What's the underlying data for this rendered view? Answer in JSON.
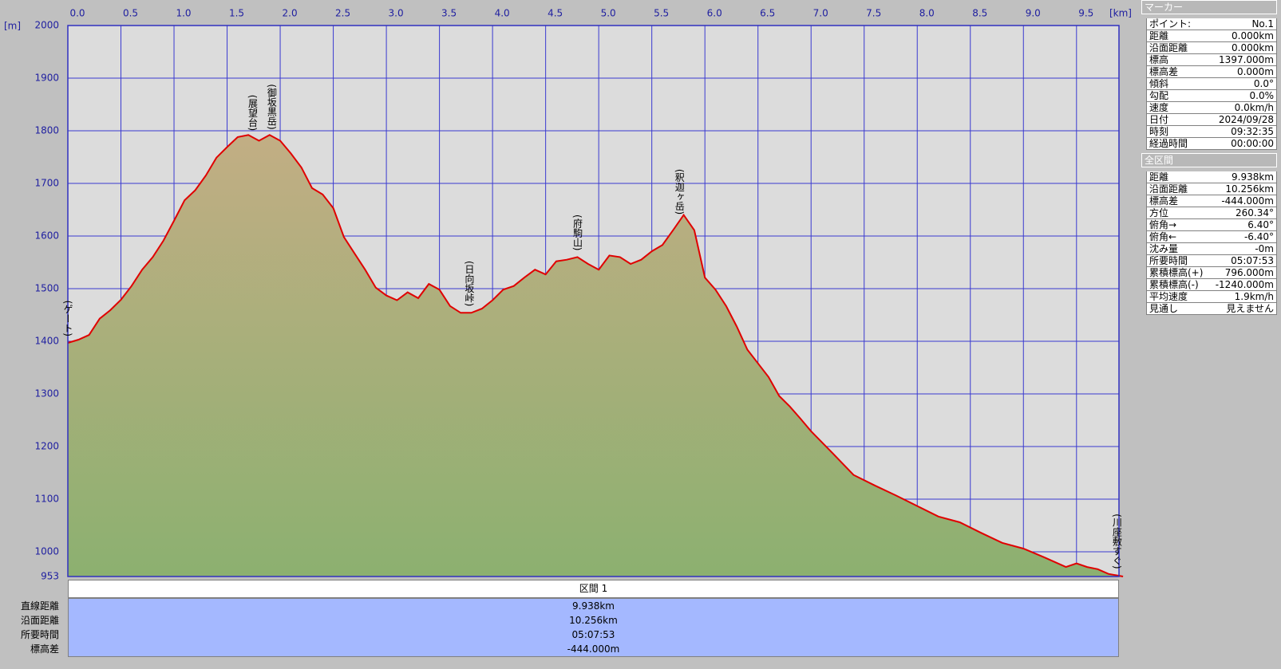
{
  "chart_data": {
    "type": "area",
    "x_unit": "[km]",
    "y_unit": "[m]",
    "x": [
      0,
      0.1,
      0.2,
      0.3,
      0.4,
      0.5,
      0.6,
      0.7,
      0.8,
      0.9,
      1.0,
      1.1,
      1.2,
      1.3,
      1.4,
      1.5,
      1.6,
      1.7,
      1.8,
      1.9,
      2.0,
      2.1,
      2.2,
      2.3,
      2.4,
      2.5,
      2.6,
      2.7,
      2.8,
      2.9,
      3.0,
      3.1,
      3.2,
      3.3,
      3.4,
      3.5,
      3.6,
      3.7,
      3.8,
      3.9,
      4.0,
      4.1,
      4.2,
      4.3,
      4.4,
      4.5,
      4.6,
      4.7,
      4.8,
      4.9,
      5.0,
      5.1,
      5.2,
      5.3,
      5.4,
      5.5,
      5.6,
      5.7,
      5.8,
      5.9,
      6.0,
      6.1,
      6.2,
      6.3,
      6.4,
      6.5,
      6.6,
      6.7,
      6.8,
      6.9,
      7.0,
      7.2,
      7.4,
      7.6,
      7.8,
      8.0,
      8.2,
      8.4,
      8.6,
      8.8,
      9.0,
      9.2,
      9.4,
      9.5,
      9.6,
      9.7,
      9.8,
      9.938
    ],
    "values": [
      1397,
      1403,
      1412,
      1443,
      1459,
      1479,
      1505,
      1536,
      1560,
      1591,
      1629,
      1668,
      1687,
      1715,
      1749,
      1769,
      1788,
      1792,
      1781,
      1792,
      1781,
      1757,
      1730,
      1691,
      1679,
      1653,
      1598,
      1567,
      1536,
      1502,
      1487,
      1478,
      1493,
      1482,
      1509,
      1498,
      1467,
      1454,
      1454,
      1462,
      1478,
      1498,
      1505,
      1521,
      1536,
      1527,
      1552,
      1555,
      1560,
      1547,
      1536,
      1563,
      1560,
      1547,
      1555,
      1571,
      1583,
      1611,
      1640,
      1611,
      1521,
      1498,
      1467,
      1428,
      1384,
      1358,
      1332,
      1296,
      1276,
      1253,
      1229,
      1188,
      1146,
      1126,
      1107,
      1087,
      1067,
      1056,
      1036,
      1017,
      1006,
      989,
      971,
      978,
      971,
      967,
      958,
      953
    ],
    "color": "#e00000",
    "xlim": [
      0,
      9.9
    ],
    "ylim": [
      953,
      2000
    ],
    "xticks": [
      {
        "value": 0,
        "label": "0.0"
      },
      0.5,
      {
        "value": 1,
        "label": "1.0"
      },
      1.5,
      {
        "value": 2,
        "label": "2.0"
      },
      2.5,
      {
        "value": 3,
        "label": "3.0"
      },
      3.5,
      {
        "value": 4,
        "label": "4.0"
      },
      4.5,
      {
        "value": 5,
        "label": "5.0"
      },
      5.5,
      {
        "value": 6,
        "label": "6.0"
      },
      6.5,
      {
        "value": 7,
        "label": "7.0"
      },
      7.5,
      {
        "value": 8,
        "label": "8.0"
      },
      8.5,
      {
        "value": 9,
        "label": "9.0"
      },
      9.5
    ],
    "yticks": [
      953,
      1000,
      1100,
      1200,
      1300,
      1400,
      1500,
      1600,
      1700,
      1800,
      1900,
      2000
    ],
    "grid": true,
    "annotations": [
      {
        "text": "(ゲート)",
        "x": 0
      },
      {
        "text": "(展望台)",
        "x": 1.74
      },
      {
        "text": "(御坂黒岳)",
        "x": 1.92
      },
      {
        "text": "(日向坂峠)",
        "x": 3.78
      },
      {
        "text": "(府駒山)",
        "x": 4.8
      },
      {
        "text": "(釈迦ヶ岳)",
        "x": 5.76
      },
      {
        "text": "(川座敷すぐ)",
        "x": 9.88
      }
    ]
  },
  "marker_panel": {
    "title": "マーカー",
    "rows": [
      [
        "ポイント:",
        "No.1"
      ],
      [
        "距離",
        "0.000km"
      ],
      [
        "沿面距離",
        "0.000km"
      ],
      [
        "標高",
        "1397.000m"
      ],
      [
        "標高差",
        "0.000m"
      ],
      [
        "傾斜",
        "0.0°"
      ],
      [
        "勾配",
        "0.0%"
      ],
      [
        "速度",
        "0.0km/h"
      ],
      [
        "日付",
        "2024/09/28"
      ],
      [
        "時刻",
        "09:32:35"
      ],
      [
        "経過時間",
        "00:00:00"
      ]
    ]
  },
  "total_panel": {
    "title": "全区間",
    "rows": [
      [
        "距離",
        "9.938km"
      ],
      [
        "沿面距離",
        "10.256km"
      ],
      [
        "標高差",
        "-444.000m"
      ],
      [
        "方位",
        "260.34°"
      ],
      [
        "俯角→",
        "6.40°"
      ],
      [
        "俯角←",
        "-6.40°"
      ],
      [
        "沈み量",
        "-0m"
      ],
      [
        "所要時間",
        "05:07:53"
      ],
      [
        "累積標高(+)",
        "796.000m"
      ],
      [
        "累積標高(-)",
        "-1240.000m"
      ],
      [
        "平均速度",
        "1.9km/h"
      ],
      [
        "見通し",
        "見えません"
      ]
    ]
  },
  "section_table": {
    "header": "区間 1",
    "rows": [
      [
        "直線距離",
        "9.938km"
      ],
      [
        "沿面距離",
        "10.256km"
      ],
      [
        "所要時間",
        "05:07:53"
      ],
      [
        "標高差",
        "-444.000m"
      ]
    ]
  }
}
